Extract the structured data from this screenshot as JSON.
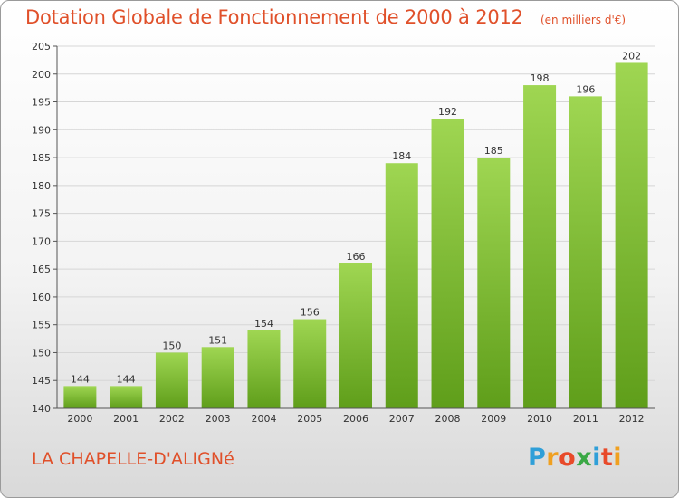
{
  "title": "Dotation Globale de Fonctionnement de 2000 à 2012",
  "subtitle": "(en milliers d'€)",
  "commune": "LA CHAPELLE-D'ALIGNé",
  "logo": {
    "text": "Proxiti",
    "letter_colors": [
      "#2f9fd8",
      "#f0a020",
      "#e84a2a",
      "#3aa845",
      "#2f9fd8",
      "#e84a2a",
      "#f0a020"
    ]
  },
  "colors": {
    "title": "#e0502a",
    "bar_top": "#9fd652",
    "bar_bottom": "#5f9e1a",
    "grid": "#d6d6d6"
  },
  "chart_data": {
    "type": "bar",
    "title": "Dotation Globale de Fonctionnement de 2000 à 2012",
    "subtitle": "(en milliers d'€)",
    "categories": [
      "2000",
      "2001",
      "2002",
      "2003",
      "2004",
      "2005",
      "2006",
      "2007",
      "2008",
      "2009",
      "2010",
      "2011",
      "2012"
    ],
    "values": [
      144,
      144,
      150,
      151,
      154,
      156,
      166,
      184,
      192,
      185,
      198,
      196,
      202
    ],
    "ylim": [
      140,
      205
    ],
    "yticks": [
      140,
      145,
      150,
      155,
      160,
      165,
      170,
      175,
      180,
      185,
      190,
      195,
      200,
      205
    ],
    "grid": true,
    "data_labels": true,
    "legend": "none"
  }
}
